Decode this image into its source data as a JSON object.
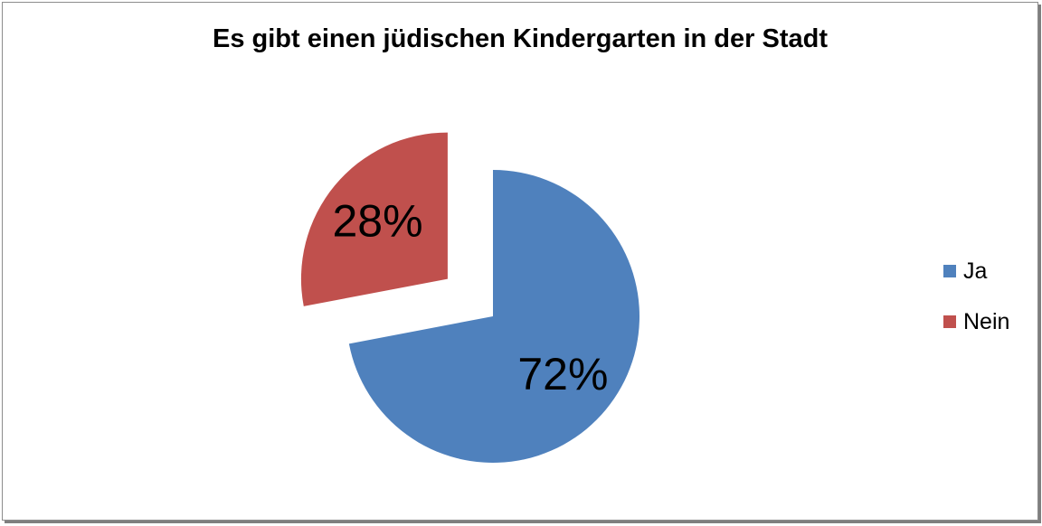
{
  "chart_data": {
    "type": "pie",
    "title": "Es gibt einen jüdischen Kindergarten in der Stadt",
    "categories": [
      "Ja",
      "Nein"
    ],
    "values": [
      72,
      28
    ],
    "data_labels": [
      "72%",
      "28%"
    ],
    "colors": [
      "#4f81bd",
      "#c0504d"
    ],
    "exploded": [
      "Nein"
    ],
    "legend_position": "right"
  }
}
